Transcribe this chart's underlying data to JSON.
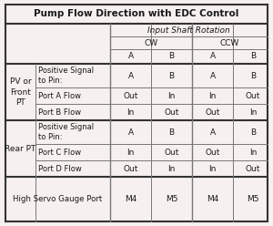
{
  "title": "Pump Flow Direction with EDC Control",
  "bg_color": "#f7f0f0",
  "col_header": "Input Shaft Rotation",
  "cw_label": "CW",
  "ccw_label": "CCW",
  "col_sub_labels": [
    "A",
    "B",
    "A",
    "B"
  ],
  "row_groups": [
    {
      "group_label": "PV or\nFront\nPT",
      "rows": [
        {
          "label": "Positive Signal\nto Pin:",
          "values": [
            "A",
            "B",
            "A",
            "B"
          ]
        },
        {
          "label": "Port A Flow",
          "values": [
            "Out",
            "In",
            "In",
            "Out"
          ]
        },
        {
          "label": "Port B Flow",
          "values": [
            "In",
            "Out",
            "Out",
            "In"
          ]
        }
      ]
    },
    {
      "group_label": "Rear PT",
      "rows": [
        {
          "label": "Positive Signal\nto Pin:",
          "values": [
            "A",
            "B",
            "A",
            "B"
          ]
        },
        {
          "label": "Port C Flow",
          "values": [
            "In",
            "Out",
            "Out",
            "In"
          ]
        },
        {
          "label": "Port D Flow",
          "values": [
            "Out",
            "In",
            "In",
            "Out"
          ]
        }
      ]
    }
  ],
  "last_row": {
    "label": "High Servo Gauge Port",
    "values": [
      "M4",
      "M5",
      "M4",
      "M5"
    ]
  },
  "text_color": "#1a1a1a",
  "line_color": "#777777",
  "thick_line_color": "#333333"
}
